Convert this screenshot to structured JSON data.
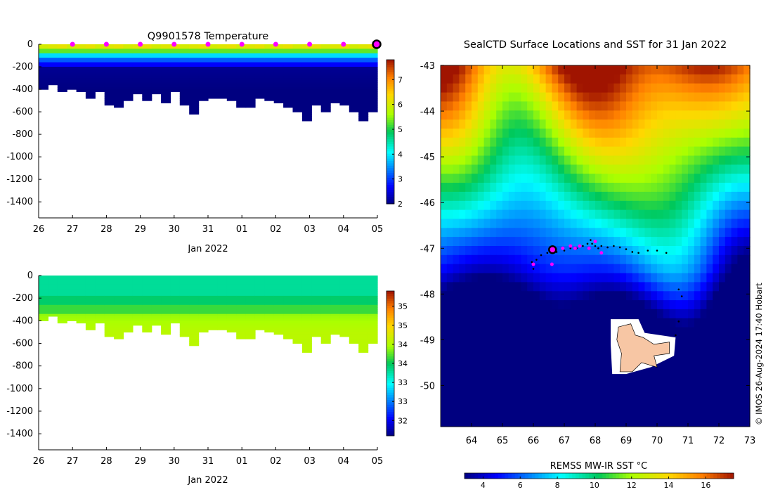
{
  "figure": {
    "credit": "© IMOS 26-Aug-2024 17:40 Hobart"
  },
  "temperature_panel": {
    "title": "Q9901578  Temperature",
    "xlabel": "Jan 2022",
    "colorbar_ticks": [
      "2",
      "3",
      "4",
      "5",
      "6",
      "7"
    ]
  },
  "salinity_panel": {
    "xlabel": "Jan 2022",
    "colorbar_ticks": [
      "32.5",
      "33",
      "33.5",
      "34",
      "34.5",
      "35",
      "35.5"
    ]
  },
  "map_panel": {
    "title": "SealCTD Surface Locations and SST for 31 Jan 2022",
    "colorbar_title": "REMSS MW-IR SST °C",
    "colorbar_ticks": [
      "4",
      "6",
      "8",
      "10",
      "12",
      "14",
      "16"
    ]
  },
  "colors": {
    "land": "#f7c6a4",
    "track_points": "#000000",
    "daily_markers": "#ff00ff",
    "current_marker": "#000000"
  },
  "chart_data": [
    {
      "type": "heatmap",
      "title": "Q9901578  Temperature",
      "xlabel": "Jan 2022",
      "ylabel": "",
      "x_tick_labels": [
        "26",
        "27",
        "28",
        "29",
        "30",
        "31",
        "01",
        "02",
        "03",
        "04",
        "05"
      ],
      "y_tick_labels": [
        "0",
        "-200",
        "-400",
        "-600",
        "-800",
        "-1000",
        "-1200",
        "-1400"
      ],
      "y_ticks": [
        0,
        -200,
        -400,
        -600,
        -800,
        -1000,
        -1200,
        -1400
      ],
      "ylim": [
        -1480,
        0
      ],
      "colorbar": {
        "min": 2,
        "max": 7.8,
        "ticks": [
          2,
          3,
          4,
          5,
          6,
          7
        ]
      },
      "dive_max_depths": [
        400,
        345,
        410,
        400,
        420,
        480,
        420,
        530,
        560,
        500,
        430,
        500,
        430,
        520,
        420,
        540,
        610,
        490,
        480,
        470,
        500,
        550,
        550,
        480,
        500,
        520,
        560,
        600,
        680,
        530,
        590,
        520,
        530,
        590,
        680,
        600
      ],
      "surface_markers_days": [
        27,
        28,
        29,
        30,
        31,
        32,
        33,
        34,
        35
      ],
      "current_profile_day": 36
    },
    {
      "type": "heatmap",
      "title": "",
      "xlabel": "Jan 2022",
      "ylabel": "",
      "x_tick_labels": [
        "26",
        "27",
        "28",
        "29",
        "30",
        "31",
        "01",
        "02",
        "03",
        "04",
        "05"
      ],
      "y_tick_labels": [
        "0",
        "-200",
        "-400",
        "-600",
        "-800",
        "-1000",
        "-1200",
        "-1400"
      ],
      "y_ticks": [
        0,
        -200,
        -400,
        -600,
        -800,
        -1000,
        -1200,
        -1400
      ],
      "ylim": [
        -1480,
        0
      ],
      "colorbar": {
        "min": 32.1,
        "max": 35.9,
        "ticks": [
          32.5,
          33,
          33.5,
          34,
          34.5,
          35,
          35.5
        ]
      },
      "dive_max_depths": [
        400,
        345,
        410,
        400,
        420,
        480,
        420,
        530,
        560,
        500,
        430,
        500,
        430,
        520,
        420,
        540,
        610,
        490,
        480,
        470,
        500,
        550,
        550,
        480,
        500,
        520,
        560,
        600,
        680,
        530,
        590,
        520,
        530,
        590,
        680,
        600
      ]
    },
    {
      "type": "heatmap",
      "title": "SealCTD Surface Locations and SST for 31 Jan 2022",
      "xlabel": "",
      "ylabel": "",
      "x_tick_labels": [
        "64",
        "65",
        "66",
        "67",
        "68",
        "69",
        "70",
        "71",
        "72",
        "73"
      ],
      "y_tick_labels": [
        "-43",
        "-44",
        "-45",
        "-46",
        "-47",
        "-48",
        "-49",
        "-50"
      ],
      "xlim": [
        63,
        73
      ],
      "ylim": [
        -50.9,
        -43
      ],
      "colorbar": {
        "title": "REMSS MW-IR SST °C",
        "min": 3,
        "max": 17.5,
        "ticks": [
          4,
          6,
          8,
          10,
          12,
          14,
          16
        ]
      },
      "seal_track": [
        [
          65.95,
          -47.3
        ],
        [
          66.0,
          -47.45
        ],
        [
          66.1,
          -47.25
        ],
        [
          66.25,
          -47.15
        ],
        [
          66.45,
          -47.1
        ],
        [
          66.6,
          -47.03
        ],
        [
          66.75,
          -47.08
        ],
        [
          67.0,
          -47.05
        ],
        [
          67.2,
          -47.0
        ],
        [
          67.4,
          -47.0
        ],
        [
          67.6,
          -46.95
        ],
        [
          67.75,
          -46.9
        ],
        [
          67.85,
          -46.82
        ],
        [
          67.9,
          -46.9
        ],
        [
          68.0,
          -46.95
        ],
        [
          68.1,
          -47.0
        ],
        [
          68.2,
          -46.95
        ],
        [
          68.4,
          -46.98
        ],
        [
          68.6,
          -46.95
        ],
        [
          68.8,
          -46.98
        ],
        [
          69.0,
          -47.02
        ],
        [
          69.2,
          -47.08
        ],
        [
          69.4,
          -47.1
        ],
        [
          69.7,
          -47.05
        ],
        [
          70.0,
          -47.05
        ],
        [
          70.3,
          -47.1
        ],
        [
          70.7,
          -47.9
        ],
        [
          70.8,
          -48.05
        ],
        [
          70.7,
          -48.6
        ],
        [
          70.6,
          -48.9
        ]
      ],
      "daily_positions": [
        [
          66.0,
          -47.35
        ],
        [
          66.6,
          -47.35
        ],
        [
          66.95,
          -47.0
        ],
        [
          67.2,
          -46.95
        ],
        [
          67.35,
          -47.0
        ],
        [
          67.5,
          -46.95
        ],
        [
          67.8,
          -47.0
        ],
        [
          68.0,
          -46.85
        ],
        [
          68.2,
          -47.1
        ]
      ],
      "current_position": [
        66.62,
        -47.03
      ],
      "islands": [
        "Kerguelen Islands"
      ]
    }
  ]
}
